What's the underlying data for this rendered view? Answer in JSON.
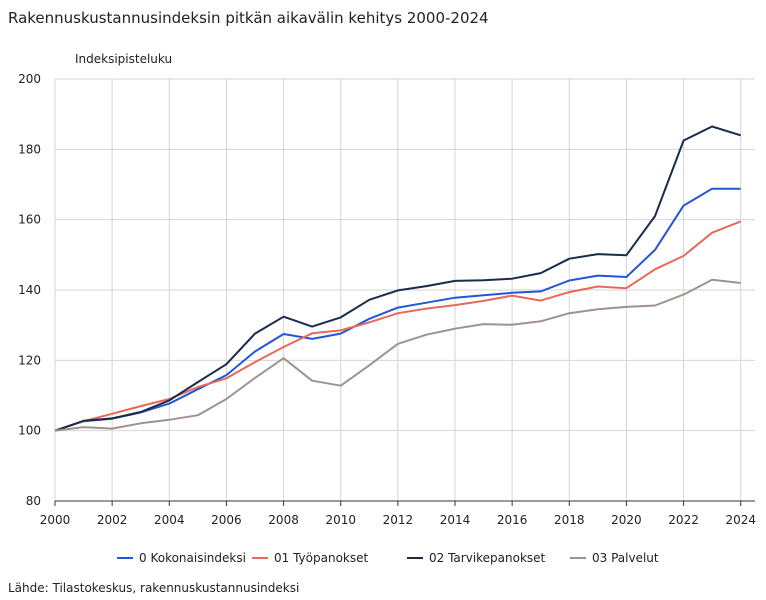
{
  "chart_data": {
    "type": "line",
    "title": "Rakennuskustannusindeksin pitkän aikavälin kehitys 2000-2024",
    "ylabel": "Indeksipisteluku",
    "xlabel": "",
    "ylim": [
      80,
      200
    ],
    "yticks": [
      80,
      100,
      120,
      140,
      160,
      180,
      200
    ],
    "xlim": [
      2000,
      2024.5
    ],
    "xticks": [
      2000,
      2002,
      2004,
      2006,
      2008,
      2010,
      2012,
      2014,
      2016,
      2018,
      2020,
      2022,
      2024
    ],
    "grid": true,
    "legend_position": "bottom",
    "x": [
      2000,
      2001,
      2002,
      2003,
      2004,
      2005,
      2006,
      2007,
      2008,
      2009,
      2010,
      2011,
      2012,
      2013,
      2014,
      2015,
      2016,
      2017,
      2018,
      2019,
      2020,
      2021,
      2022,
      2023,
      2024
    ],
    "series": [
      {
        "name": "0 Kokonaisindeksi",
        "color": "#2156d9",
        "values": [
          100,
          102.7,
          103.4,
          105.2,
          107.7,
          111.8,
          115.8,
          122.5,
          127.5,
          126.1,
          127.6,
          131.8,
          135.0,
          136.4,
          137.8,
          138.5,
          139.2,
          139.6,
          142.7,
          144.1,
          143.7,
          151.4,
          164.0,
          168.8,
          168.8
        ]
      },
      {
        "name": "01 Työpanokset",
        "color": "#e8685a",
        "values": [
          100,
          102.7,
          104.8,
          107.0,
          109.0,
          112.4,
          114.9,
          119.5,
          123.8,
          127.7,
          128.5,
          130.8,
          133.4,
          134.7,
          135.7,
          136.9,
          138.4,
          137.0,
          139.4,
          141.0,
          140.5,
          145.9,
          149.7,
          156.3,
          159.5
        ]
      },
      {
        "name": "02 Tarvikepanokset",
        "color": "#1a2b4c",
        "values": [
          100,
          102.8,
          103.5,
          105.3,
          108.6,
          113.8,
          118.9,
          127.6,
          132.4,
          129.6,
          132.2,
          137.2,
          139.9,
          141.1,
          142.6,
          142.8,
          143.2,
          144.8,
          148.9,
          150.2,
          149.9,
          161.0,
          182.5,
          186.5,
          184.0
        ]
      },
      {
        "name": "03 Palvelut",
        "color": "#a0928d",
        "values": [
          100,
          101.0,
          100.6,
          102.1,
          103.1,
          104.4,
          109.0,
          115.0,
          120.6,
          114.2,
          112.8,
          118.6,
          124.7,
          127.3,
          129.0,
          130.3,
          130.1,
          131.1,
          133.4,
          134.5,
          135.2,
          135.6,
          138.7,
          142.9,
          142.0
        ]
      }
    ]
  },
  "source_text": "Lähde: Tilastokeskus, rakennuskustannusindeksi"
}
